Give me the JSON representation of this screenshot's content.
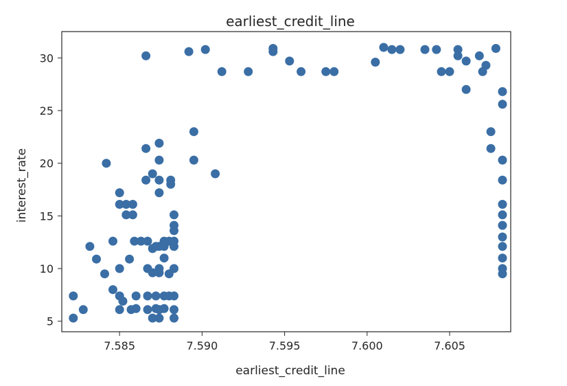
{
  "chart_data": {
    "type": "scatter",
    "title": "earliest_credit_line",
    "xlabel": "earliest_credit_line",
    "ylabel": "interest_rate",
    "xlim": [
      7.5815,
      7.6087
    ],
    "ylim": [
      4.0,
      32.5
    ],
    "xticks": [
      7.585,
      7.59,
      7.595,
      7.6,
      7.605
    ],
    "xtick_labels": [
      "7.585",
      "7.590",
      "7.595",
      "7.600",
      "7.605"
    ],
    "yticks": [
      5,
      10,
      15,
      20,
      25,
      30
    ],
    "ytick_labels": [
      "5",
      "10",
      "15",
      "20",
      "25",
      "30"
    ],
    "grid": false,
    "marker_color": "#3a6ea5",
    "series": [
      {
        "points": [
          [
            7.5822,
            7.4
          ],
          [
            7.5822,
            5.3
          ],
          [
            7.5828,
            6.1
          ],
          [
            7.5832,
            12.1
          ],
          [
            7.5836,
            10.9
          ],
          [
            7.5842,
            20.0
          ],
          [
            7.5841,
            9.5
          ],
          [
            7.5846,
            12.6
          ],
          [
            7.5846,
            8.0
          ],
          [
            7.585,
            17.2
          ],
          [
            7.585,
            16.1
          ],
          [
            7.585,
            10.0
          ],
          [
            7.585,
            7.4
          ],
          [
            7.585,
            6.1
          ],
          [
            7.5852,
            6.9
          ],
          [
            7.5854,
            15.1
          ],
          [
            7.5854,
            16.1
          ],
          [
            7.5856,
            10.9
          ],
          [
            7.5857,
            6.1
          ],
          [
            7.5858,
            16.1
          ],
          [
            7.5858,
            15.1
          ],
          [
            7.5859,
            12.6
          ],
          [
            7.586,
            7.4
          ],
          [
            7.586,
            6.2
          ],
          [
            7.5863,
            12.6
          ],
          [
            7.5866,
            21.4
          ],
          [
            7.5866,
            18.4
          ],
          [
            7.5866,
            30.2
          ],
          [
            7.5867,
            12.6
          ],
          [
            7.5867,
            10.0
          ],
          [
            7.5867,
            7.4
          ],
          [
            7.5867,
            6.1
          ],
          [
            7.587,
            19.0
          ],
          [
            7.587,
            11.9
          ],
          [
            7.587,
            9.6
          ],
          [
            7.587,
            5.3
          ],
          [
            7.5872,
            12.1
          ],
          [
            7.5872,
            7.4
          ],
          [
            7.5872,
            6.2
          ],
          [
            7.5874,
            21.9
          ],
          [
            7.5874,
            20.3
          ],
          [
            7.5874,
            18.4
          ],
          [
            7.5874,
            17.2
          ],
          [
            7.5874,
            12.1
          ],
          [
            7.5874,
            10.0
          ],
          [
            7.5874,
            9.6
          ],
          [
            7.5874,
            6.1
          ],
          [
            7.5874,
            5.3
          ],
          [
            7.5877,
            12.6
          ],
          [
            7.5877,
            12.1
          ],
          [
            7.5877,
            11.0
          ],
          [
            7.5877,
            7.4
          ],
          [
            7.5877,
            6.2
          ],
          [
            7.588,
            12.6
          ],
          [
            7.588,
            9.5
          ],
          [
            7.588,
            7.4
          ],
          [
            7.5881,
            18.4
          ],
          [
            7.5881,
            18.0
          ],
          [
            7.5883,
            15.1
          ],
          [
            7.5883,
            14.1
          ],
          [
            7.5883,
            13.6
          ],
          [
            7.5883,
            12.6
          ],
          [
            7.5883,
            12.1
          ],
          [
            7.5883,
            10.0
          ],
          [
            7.5883,
            7.4
          ],
          [
            7.5883,
            6.1
          ],
          [
            7.5883,
            5.3
          ],
          [
            7.5892,
            30.6
          ],
          [
            7.5895,
            23.0
          ],
          [
            7.5895,
            20.3
          ],
          [
            7.5902,
            30.8
          ],
          [
            7.5908,
            19.0
          ],
          [
            7.5912,
            28.7
          ],
          [
            7.5928,
            28.7
          ],
          [
            7.5943,
            30.9
          ],
          [
            7.5943,
            30.6
          ],
          [
            7.5953,
            29.7
          ],
          [
            7.596,
            28.7
          ],
          [
            7.5975,
            28.7
          ],
          [
            7.598,
            28.7
          ],
          [
            7.6078,
            30.9
          ],
          [
            7.6005,
            29.6
          ],
          [
            7.601,
            31.0
          ],
          [
            7.6015,
            30.8
          ],
          [
            7.602,
            30.8
          ],
          [
            7.6035,
            30.8
          ],
          [
            7.6042,
            30.8
          ],
          [
            7.6055,
            30.8
          ],
          [
            7.6055,
            30.2
          ],
          [
            7.606,
            29.7
          ],
          [
            7.6068,
            30.2
          ],
          [
            7.6072,
            29.3
          ],
          [
            7.605,
            28.7
          ],
          [
            7.607,
            28.7
          ],
          [
            7.6045,
            28.7
          ],
          [
            7.6082,
            26.8
          ],
          [
            7.6082,
            25.6
          ],
          [
            7.6082,
            20.3
          ],
          [
            7.6082,
            18.4
          ],
          [
            7.6082,
            16.1
          ],
          [
            7.6082,
            15.1
          ],
          [
            7.6082,
            14.1
          ],
          [
            7.6082,
            13.0
          ],
          [
            7.6082,
            12.1
          ],
          [
            7.6082,
            11.0
          ],
          [
            7.6082,
            10.0
          ],
          [
            7.6082,
            9.5
          ],
          [
            7.6075,
            21.4
          ],
          [
            7.6075,
            23.0
          ],
          [
            7.606,
            27.0
          ]
        ]
      }
    ]
  }
}
